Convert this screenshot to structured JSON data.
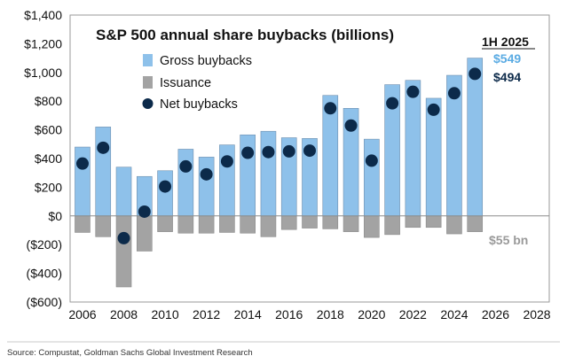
{
  "chart_data": {
    "type": "bar",
    "title": "S&P 500 annual share buybacks (billions)",
    "xlabel": "",
    "ylabel": "",
    "x": [
      2006,
      2007,
      2008,
      2009,
      2010,
      2011,
      2012,
      2013,
      2014,
      2015,
      2016,
      2017,
      2018,
      2019,
      2020,
      2021,
      2022,
      2023,
      2024,
      2025
    ],
    "series": [
      {
        "name": "Gross buybacks",
        "type": "bar",
        "values": [
          480,
          620,
          340,
          275,
          315,
          465,
          410,
          495,
          565,
          590,
          545,
          540,
          840,
          750,
          535,
          915,
          945,
          820,
          980,
          1100
        ]
      },
      {
        "name": "Issuance",
        "type": "bar",
        "values": [
          -115,
          -145,
          -495,
          -245,
          -110,
          -120,
          -120,
          -115,
          -120,
          -145,
          -95,
          -85,
          -90,
          -110,
          -150,
          -130,
          -80,
          -80,
          -125,
          -110
        ]
      },
      {
        "name": "Net buybacks",
        "type": "scatter",
        "values": [
          365,
          475,
          -155,
          30,
          205,
          345,
          290,
          380,
          440,
          445,
          450,
          455,
          750,
          630,
          385,
          785,
          865,
          740,
          855,
          990
        ]
      }
    ],
    "xlim": [
      2005.4,
      2028.6
    ],
    "ylim": [
      -600,
      1400
    ],
    "yticks": [
      -600,
      -400,
      -200,
      0,
      200,
      400,
      600,
      800,
      1000,
      1200,
      1400
    ],
    "ytick_labels": [
      "($600)",
      "($400)",
      "($200)",
      "$0",
      "$200",
      "$400",
      "$600",
      "$800",
      "$1,000",
      "$1,200",
      "$1,400"
    ],
    "xticks": [
      2006,
      2008,
      2010,
      2012,
      2014,
      2016,
      2018,
      2020,
      2022,
      2024,
      2026,
      2028
    ],
    "xtick_labels": [
      "2006",
      "2008",
      "2010",
      "2012",
      "2014",
      "2016",
      "2018",
      "2020",
      "2022",
      "2024",
      "2026",
      "2028"
    ],
    "annotations": {
      "header": "1H 2025",
      "gross_value": "$549",
      "net_value": "$494",
      "issuance_value": "$55 bn"
    },
    "legend": "top-left",
    "grid": false
  },
  "source": "Source: Compustat, Goldman Sachs Global Investment Research",
  "colors": {
    "gross": "#8ec1ea",
    "issuance": "#a3a3a3",
    "net": "#0c2a4a",
    "gross_text": "#5aabe3",
    "issuance_text": "#9a9a9a",
    "axis": "#8c8c8c",
    "frame": "#999999"
  }
}
